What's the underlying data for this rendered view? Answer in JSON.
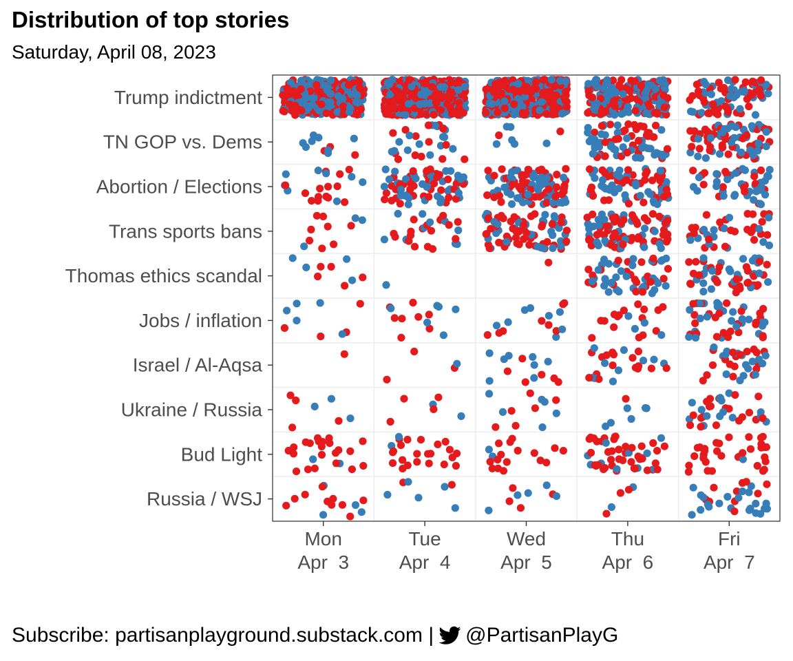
{
  "title": "Distribution of top stories",
  "subtitle": "Saturday, April 08, 2023",
  "footer": {
    "subscribe_text": "Subscribe: partisanplayground.substack.com |",
    "twitter_icon": "twitter-bird-icon",
    "handle": "@PartisanPlayG"
  },
  "colors": {
    "red": "#E41A1C",
    "blue": "#377EB8",
    "grid": "#EBEBEB",
    "panel_border": "#333333",
    "axis_text": "#4D4D4D"
  },
  "chart_data": {
    "type": "scatter",
    "description_note": "",
    "legend": "none",
    "grid": true,
    "x_categories": [
      {
        "day": "Mon",
        "date": "Apr  3"
      },
      {
        "day": "Tue",
        "date": "Apr  4"
      },
      {
        "day": "Wed",
        "date": "Apr  5"
      },
      {
        "day": "Thu",
        "date": "Apr  6"
      },
      {
        "day": "Fri",
        "date": "Apr  7"
      }
    ],
    "y_categories": [
      "Trump indictment",
      "TN GOP vs. Dems",
      "Abortion / Elections",
      "Trans sports bans",
      "Thomas ethics scandal",
      "Jobs / inflation",
      "Israel / Al-Aqsa",
      "Ukraine / Russia",
      "Bud Light",
      "Russia / WSJ"
    ],
    "series": [
      {
        "color": "red"
      },
      {
        "color": "blue"
      }
    ],
    "counts": [
      {
        "story": "Trump indictment",
        "red": [
          200,
          450,
          330,
          110,
          45
        ],
        "blue": [
          160,
          200,
          190,
          110,
          40
        ]
      },
      {
        "story": "TN GOP vs. Dems",
        "red": [
          3,
          14,
          2,
          32,
          42
        ],
        "blue": [
          8,
          16,
          6,
          44,
          38
        ]
      },
      {
        "story": "Abortion / Elections",
        "red": [
          14,
          40,
          55,
          38,
          18
        ],
        "blue": [
          8,
          40,
          55,
          38,
          34
        ]
      },
      {
        "story": "Trans sports bans",
        "red": [
          8,
          18,
          55,
          55,
          28
        ],
        "blue": [
          3,
          10,
          35,
          35,
          14
        ]
      },
      {
        "story": "Thomas ethics scandal",
        "red": [
          5,
          0,
          1,
          22,
          32
        ],
        "blue": [
          4,
          1,
          0,
          34,
          26
        ]
      },
      {
        "story": "Jobs / inflation",
        "red": [
          4,
          8,
          8,
          16,
          26
        ],
        "blue": [
          5,
          6,
          8,
          4,
          26
        ]
      },
      {
        "story": "Israel / Al-Aqsa",
        "red": [
          1,
          3,
          6,
          16,
          18
        ],
        "blue": [
          0,
          1,
          8,
          10,
          16
        ]
      },
      {
        "story": "Ukraine / Russia",
        "red": [
          4,
          4,
          6,
          1,
          20
        ],
        "blue": [
          3,
          2,
          6,
          6,
          16
        ]
      },
      {
        "story": "Bud Light",
        "red": [
          22,
          22,
          16,
          42,
          32
        ],
        "blue": [
          2,
          2,
          2,
          10,
          2
        ]
      },
      {
        "story": "Russia / WSJ",
        "red": [
          10,
          2,
          4,
          3,
          10
        ],
        "blue": [
          4,
          5,
          5,
          2,
          22
        ]
      }
    ]
  }
}
